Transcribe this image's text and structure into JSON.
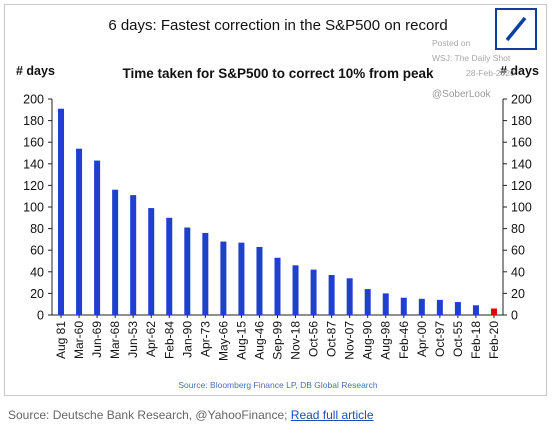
{
  "chart_data": {
    "type": "bar",
    "title": "6 days: Fastest correction in the S&P500 on record",
    "subtitle": "Time taken for S&P500 to correct 10% from peak",
    "ylabel_left": "# days",
    "ylabel_right": "# days",
    "ylim": [
      0,
      200
    ],
    "yticks": [
      "0",
      "20",
      "40",
      "60",
      "80",
      "100",
      "120",
      "140",
      "160",
      "180",
      "200"
    ],
    "categories": [
      "Aug 81",
      "Mar-60",
      "Jun-69",
      "Mar-68",
      "Jun-53",
      "Apr-62",
      "Feb-84",
      "Jan-90",
      "Apr-73",
      "May-66",
      "Aug-15",
      "Aug-46",
      "Sep-99",
      "Nov-18",
      "Oct-56",
      "Oct-87",
      "Nov-07",
      "Aug-90",
      "Aug-98",
      "Feb-46",
      "Apr-00",
      "Oct-97",
      "Oct-55",
      "Feb-18",
      "Feb-20"
    ],
    "values": [
      191,
      154,
      143,
      116,
      111,
      99,
      90,
      81,
      76,
      68,
      67,
      63,
      53,
      46,
      42,
      37,
      34,
      24,
      20,
      16,
      15,
      14,
      12,
      9,
      6
    ],
    "highlight_index": 24,
    "colors": {
      "bar": "#1f3fcf",
      "highlight": "#e00000"
    },
    "grid": false,
    "legend": "none"
  },
  "watermark": {
    "line1": "Posted on",
    "line2": "WSJ: The Daily Shot",
    "line3": "28-Feb-2020",
    "handle": "@SoberLook"
  },
  "source_note": "Source: Bloomberg Finance LP, DB Global Research",
  "caption": {
    "text": "Source: Deutsche Bank Research, @YahooFinance; ",
    "link_label": "Read full article"
  },
  "logo_icon": "deutsche-bank-logo-icon"
}
